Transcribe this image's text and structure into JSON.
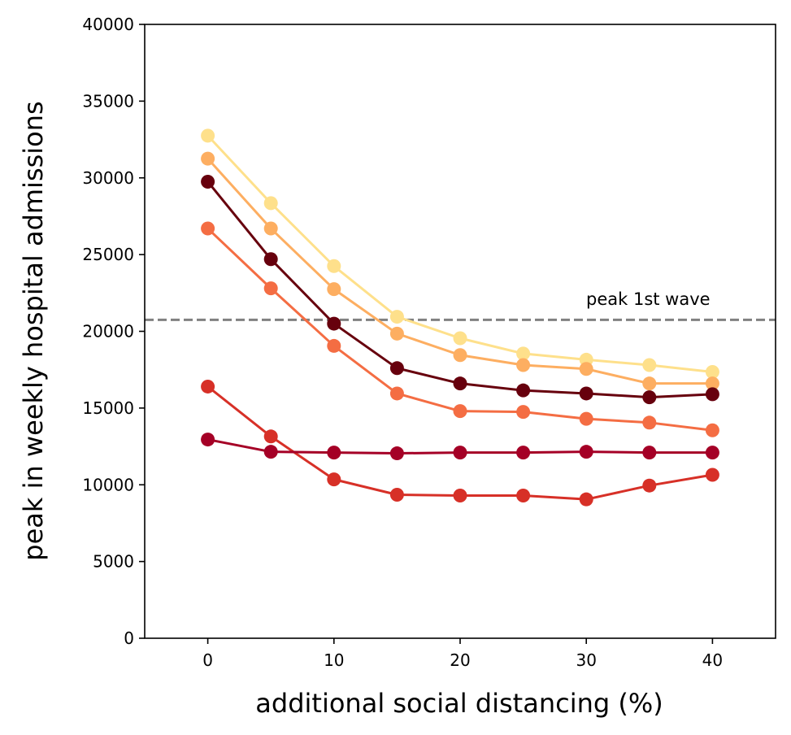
{
  "chart_data": {
    "type": "line",
    "title": "",
    "xlabel": "additional social distancing (%)",
    "ylabel": "peak in weekly hospital admissions",
    "xlim": [
      -5,
      45
    ],
    "ylim": [
      0,
      40000
    ],
    "xticks": [
      0,
      10,
      20,
      30,
      40
    ],
    "yticks": [
      0,
      5000,
      10000,
      15000,
      20000,
      25000,
      30000,
      35000,
      40000
    ],
    "grid": false,
    "x": [
      0,
      5,
      10,
      15,
      20,
      25,
      30,
      35,
      40
    ],
    "series": [
      {
        "color": "#fee08b",
        "values": [
          32750,
          28350,
          24250,
          20950,
          19550,
          18550,
          18150,
          17800,
          17350
        ]
      },
      {
        "color": "#fdae61",
        "values": [
          31250,
          26700,
          22750,
          19850,
          18450,
          17800,
          17550,
          16600,
          16600
        ]
      },
      {
        "color": "#67000d",
        "values": [
          29750,
          24700,
          20500,
          17600,
          16600,
          16150,
          15950,
          15700,
          15900
        ]
      },
      {
        "color": "#f46d43",
        "values": [
          26700,
          22800,
          19050,
          15950,
          14800,
          14750,
          14300,
          14050,
          13550
        ]
      },
      {
        "color": "#d73027",
        "values": [
          16400,
          13150,
          10350,
          9350,
          9300,
          9300,
          9050,
          9950,
          10650
        ]
      },
      {
        "color": "#a50026",
        "values": [
          12950,
          12150,
          12100,
          12050,
          12100,
          12100,
          12150,
          12100,
          12100
        ]
      }
    ],
    "reference_line": {
      "y": 20750,
      "color": "#808080",
      "style": "dashed",
      "label": "peak 1st wave"
    }
  }
}
